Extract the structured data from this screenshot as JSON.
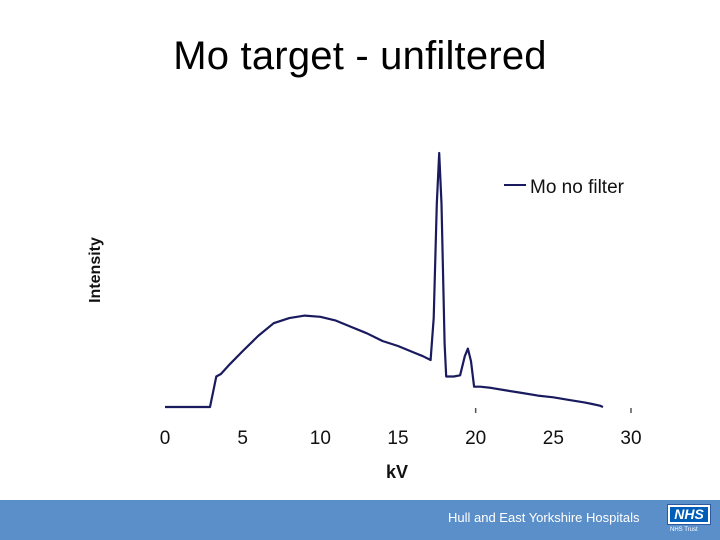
{
  "slide": {
    "title": "Mo target - unfiltered"
  },
  "footer": {
    "organisation": "Hull and East Yorkshire Hospitals",
    "logo_text": "NHS",
    "subtitle": "NHS Trust",
    "band_color": "#5b8fc9"
  },
  "chart_data": {
    "type": "line",
    "title": "",
    "xlabel": "kV",
    "ylabel": "Intensity",
    "xlim": [
      0,
      30
    ],
    "ylim": [
      0,
      100
    ],
    "x_ticks": [
      0,
      5,
      10,
      15,
      20,
      25,
      30
    ],
    "grid": false,
    "legend_position": "top-right",
    "series": [
      {
        "name": "Mo no filter",
        "color": "#1a1a5e",
        "points": [
          [
            0,
            0
          ],
          [
            2.0,
            0
          ],
          [
            2.9,
            0
          ],
          [
            3.3,
            12
          ],
          [
            3.6,
            13
          ],
          [
            4.2,
            17
          ],
          [
            5.0,
            22
          ],
          [
            6.0,
            28
          ],
          [
            7.0,
            33
          ],
          [
            8.0,
            35
          ],
          [
            9.0,
            36
          ],
          [
            10.0,
            35.5
          ],
          [
            11.0,
            34
          ],
          [
            12.0,
            31.5
          ],
          [
            13.0,
            29
          ],
          [
            14.0,
            26
          ],
          [
            15.0,
            24
          ],
          [
            16.0,
            21.5
          ],
          [
            16.6,
            20
          ],
          [
            17.1,
            18.5
          ],
          [
            17.3,
            35
          ],
          [
            17.5,
            80
          ],
          [
            17.65,
            100
          ],
          [
            17.8,
            80
          ],
          [
            18.0,
            25
          ],
          [
            18.1,
            12
          ],
          [
            18.6,
            12
          ],
          [
            19.0,
            12.5
          ],
          [
            19.3,
            20
          ],
          [
            19.5,
            23
          ],
          [
            19.7,
            18
          ],
          [
            19.9,
            8
          ],
          [
            20.3,
            8
          ],
          [
            21.0,
            7.5
          ],
          [
            22.0,
            6.5
          ],
          [
            23.0,
            5.5
          ],
          [
            24.0,
            4.5
          ],
          [
            25.0,
            3.8
          ],
          [
            26.0,
            2.8
          ],
          [
            27.0,
            1.8
          ],
          [
            27.5,
            1.2
          ],
          [
            28.0,
            0.5
          ],
          [
            28.2,
            0
          ]
        ]
      }
    ]
  }
}
